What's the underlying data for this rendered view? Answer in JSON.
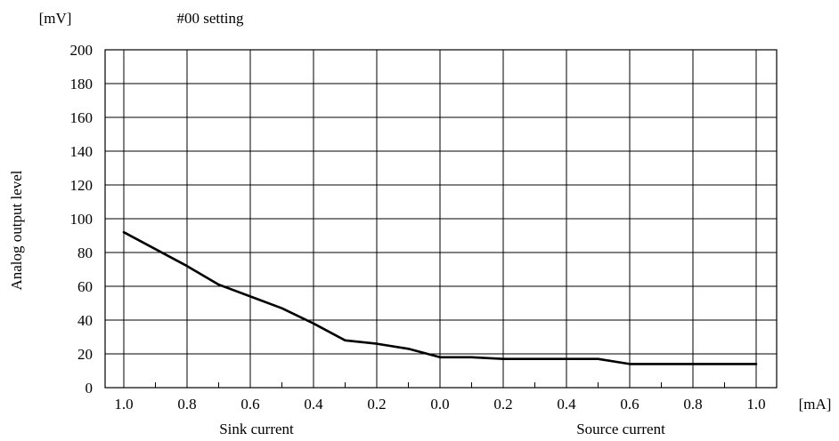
{
  "chart_data": {
    "type": "line",
    "title": "#00 setting",
    "ylabel": "Analog output level",
    "y_unit": "[mV]",
    "x_unit": "[mA]",
    "ylim": [
      0,
      200
    ],
    "y_ticks": [
      "0",
      "20",
      "40",
      "60",
      "80",
      "100",
      "120",
      "140",
      "160",
      "180",
      "200"
    ],
    "x_ticks": [
      "1.0",
      "0.8",
      "0.6",
      "0.4",
      "0.2",
      "0.0",
      "0.2",
      "0.4",
      "0.6",
      "0.8",
      "1.0"
    ],
    "x_region_labels": [
      "Sink current",
      "Source current"
    ],
    "x_note": "signed current: negative = sink, positive = source",
    "xlim": [
      -1.0,
      1.0
    ],
    "grid": true,
    "series": [
      {
        "color": "#000000",
        "x": [
          -1.0,
          -0.9,
          -0.8,
          -0.7,
          -0.6,
          -0.5,
          -0.4,
          -0.3,
          -0.2,
          -0.1,
          0.0,
          0.1,
          0.2,
          0.3,
          0.4,
          0.5,
          0.6,
          0.7,
          0.8,
          0.9,
          1.0
        ],
        "y": [
          92,
          82,
          72,
          61,
          54,
          47,
          38,
          28,
          26,
          23,
          18,
          18,
          17,
          17,
          17,
          17,
          14,
          14,
          14,
          14,
          14
        ]
      }
    ]
  }
}
